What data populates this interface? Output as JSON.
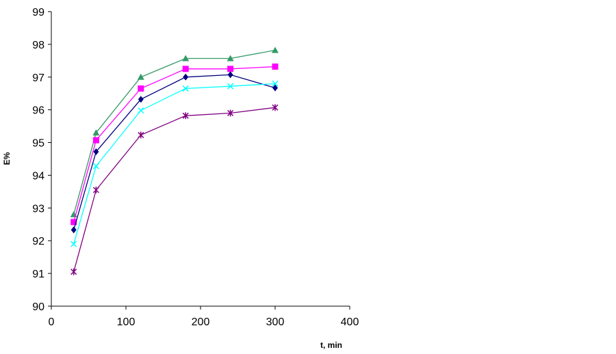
{
  "chart_data": {
    "type": "line",
    "title": "",
    "xlabel": "t, min",
    "ylabel": "E%",
    "xlim": [
      0,
      400
    ],
    "ylim": [
      90,
      99
    ],
    "xticks": [
      0,
      100,
      200,
      300,
      400
    ],
    "yticks": [
      90,
      91,
      92,
      93,
      94,
      95,
      96,
      97,
      98,
      99
    ],
    "grid": false,
    "legend": "none",
    "x": [
      30,
      60,
      120,
      180,
      240,
      300
    ],
    "series": [
      {
        "marker": "triangle",
        "color": "#339966",
        "values": [
          92.8,
          95.3,
          97.0,
          97.57,
          97.57,
          97.82
        ]
      },
      {
        "marker": "square",
        "color": "#ff00ff",
        "values": [
          92.57,
          95.07,
          96.65,
          97.25,
          97.25,
          97.32
        ]
      },
      {
        "marker": "diamond",
        "color": "#000080",
        "values": [
          92.33,
          94.72,
          96.32,
          97.0,
          97.07,
          96.67
        ]
      },
      {
        "marker": "x",
        "color": "#00ffff",
        "values": [
          91.9,
          94.28,
          95.98,
          96.65,
          96.72,
          96.8
        ]
      },
      {
        "marker": "star",
        "color": "#800080",
        "values": [
          91.05,
          93.55,
          95.23,
          95.82,
          95.9,
          96.07
        ]
      }
    ]
  }
}
